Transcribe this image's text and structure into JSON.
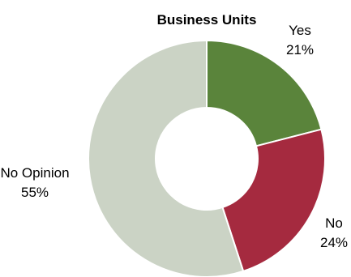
{
  "chart_data": {
    "type": "pie",
    "donut": true,
    "title": "Business Units",
    "slices": [
      {
        "label": "Yes",
        "value": 21,
        "value_label": "21%",
        "color": "#5a843b"
      },
      {
        "label": "No",
        "value": 24,
        "value_label": "24%",
        "color": "#a52a3f"
      },
      {
        "label": "No Opinion",
        "value": 55,
        "value_label": "55%",
        "color": "#cbd3c5"
      }
    ],
    "start_angle_deg": 0,
    "direction": "clockwise",
    "legend": "none",
    "grid": false
  }
}
